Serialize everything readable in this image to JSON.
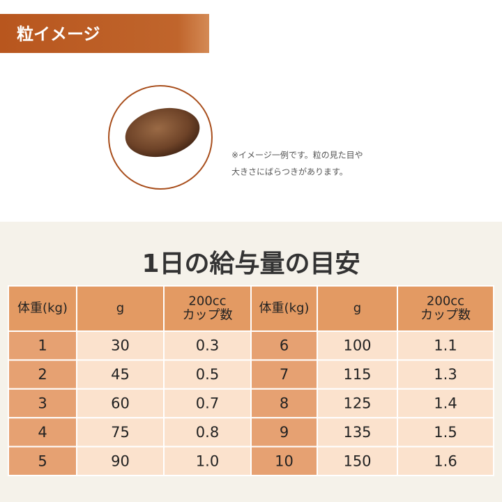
{
  "header": {
    "title": "粒イメージ"
  },
  "note": {
    "lines": [
      "※イメージ一例です。粒の見た目や",
      "大きさにばらつきがあります。"
    ]
  },
  "section": {
    "title": "1日の給与量の目安"
  },
  "table": {
    "headers": [
      "体重(kg)",
      "g",
      [
        "200cc",
        "カップ数"
      ]
    ],
    "rows": [
      [
        "1",
        "30",
        "0.3"
      ],
      [
        "2",
        "45",
        "0.5"
      ],
      [
        "3",
        "60",
        "0.7"
      ],
      [
        "4",
        "75",
        "0.8"
      ],
      [
        "5",
        "90",
        "1.0"
      ],
      [
        "6",
        "100",
        "1.1"
      ],
      [
        "7",
        "115",
        "1.3"
      ],
      [
        "8",
        "125",
        "1.4"
      ],
      [
        "9",
        "135",
        "1.5"
      ],
      [
        "10",
        "150",
        "1.6"
      ]
    ]
  }
}
